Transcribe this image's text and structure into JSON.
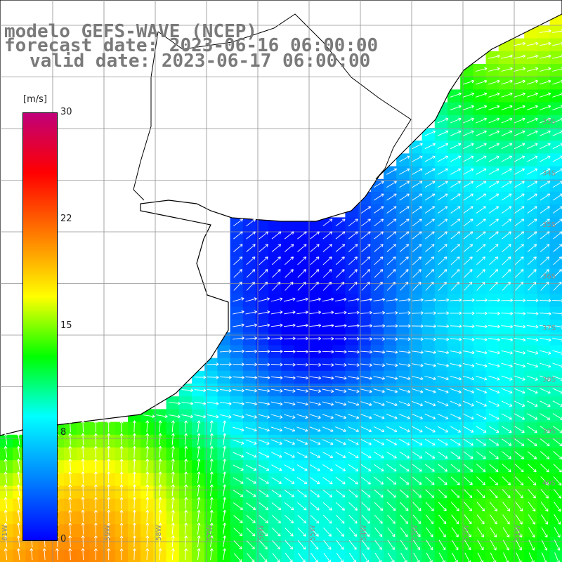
{
  "header": {
    "model": "modelo GEFS-WAVE (NCEP)",
    "forecast": "forecast date: 2023-06-16 06:00:00",
    "valid": "valid date: 2023-06-17 06:00:00"
  },
  "colorbar": {
    "unit": "[m/s]",
    "ticks": [
      "30",
      "22",
      "15",
      "8",
      "0"
    ],
    "colors": [
      "#0000ff",
      "#0080ff",
      "#00ffff",
      "#00ff00",
      "#ffff00",
      "#ff8000",
      "#ff0000",
      "#c0007a"
    ]
  },
  "map": {
    "lat_labels": [
      "33S",
      "34S",
      "35S",
      "36S",
      "37S",
      "38S",
      "39S",
      "40S"
    ],
    "lon_labels": [
      "61W",
      "60W",
      "59W",
      "58W",
      "57W",
      "56W",
      "55W",
      "54W",
      "53W",
      "52W",
      "51W"
    ],
    "land_color": "#ffffff",
    "grid_color": "#909090"
  }
}
